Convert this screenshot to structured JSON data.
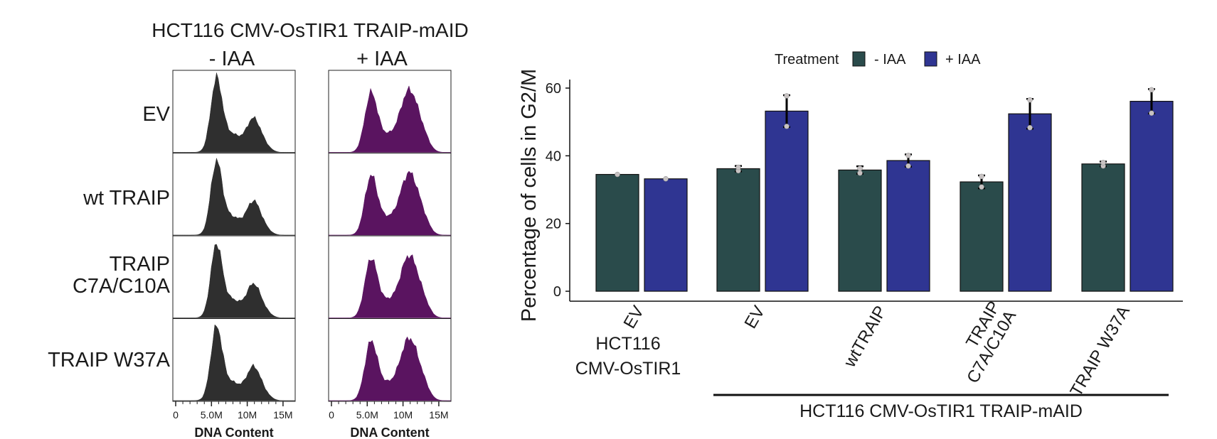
{
  "left_panel": {
    "title": "HCT116 CMV-OsTIR1 TRAIP-mAID",
    "col_headers": [
      "- IAA",
      "+ IAA"
    ],
    "row_labels": [
      [
        "EV"
      ],
      [
        "wt TRAIP"
      ],
      [
        "TRAIP",
        "C7A/C10A"
      ],
      [
        "TRAIP W37A"
      ]
    ],
    "x_ticks": [
      "0",
      "5.0M",
      "10M",
      "15M"
    ],
    "x_label": "DNA Content",
    "colors": {
      "minus": "#2f2f2f",
      "plus": "#5a1460"
    }
  },
  "chart_data": {
    "type": "bar",
    "title": "",
    "ylabel": "Percentage of cells in G2/M",
    "xlabel": "",
    "ylim": [
      0,
      62
    ],
    "yticks": [
      0,
      20,
      40,
      60
    ],
    "legend": {
      "title": "Treatment",
      "position": "top"
    },
    "categories": [
      "EV",
      "EV",
      "wtTRAIP",
      "TRAIP C7A/C10A",
      "TRAIP W37A"
    ],
    "category_labels": [
      [
        "EV"
      ],
      [
        "EV"
      ],
      [
        "wtTRAIP"
      ],
      [
        "TRAIP",
        "C7A/C10A"
      ],
      [
        "TRAIP W37A"
      ]
    ],
    "series": [
      {
        "name": "- IAA",
        "color": "#2a4b4b",
        "values": [
          34.5,
          36.2,
          35.8,
          32.3,
          37.6
        ],
        "errors": [
          0.3,
          0.8,
          1.1,
          1.9,
          0.7
        ]
      },
      {
        "name": "+ IAA",
        "color": "#2f3592",
        "values": [
          33.2,
          53.2,
          38.6,
          52.4,
          56.1
        ],
        "errors": [
          0.3,
          4.7,
          1.8,
          4.4,
          3.6
        ]
      }
    ],
    "replicates": {
      "- IAA": [
        [
          34.5
        ],
        [
          35.6,
          36.6
        ],
        [
          34.9,
          36.3
        ],
        [
          30.8,
          33.9
        ],
        [
          37.0,
          38.0
        ]
      ],
      "+ IAA": [
        [
          33.2
        ],
        [
          48.7,
          57.7
        ],
        [
          37.0,
          40.1
        ],
        [
          48.3,
          56.5
        ],
        [
          52.6,
          59.5
        ]
      ]
    },
    "group_labels": [
      [
        "HCT116",
        "CMV-OsTIR1"
      ],
      [
        "HCT116 CMV-OsTIR1 TRAIP-mAID"
      ]
    ]
  }
}
